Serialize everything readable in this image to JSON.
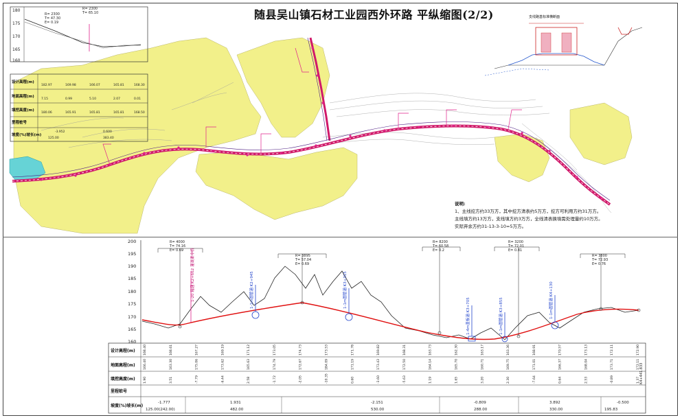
{
  "title": "随县吴山镇石材工业园西外环路 平纵缩图(2/2)",
  "section_title": "支线路基标准横断面",
  "notes": {
    "heading": "说明:",
    "lines": [
      "1、主线挖方约33万方，其中挖方清表约5万方，挖方可利用方约31万方。",
      "主线填方约13万方，支线填方约3万方，全线清表换填需处理量约10万方。",
      "实际弃余方约31-13-3-10=5万方。"
    ]
  },
  "row_labels": [
    "设计高程(m)",
    "地面高程(m)",
    "填挖高度(m)",
    "里程桩号",
    "坡度(%)坡长(m)"
  ],
  "mini_profile": {
    "y_ticks": [
      "180",
      "175",
      "170",
      "165",
      "160"
    ],
    "curve_label": [
      "R= 2300",
      "T= 47.30",
      "E= 0.19"
    ],
    "curve_label2": [
      "R= 2300",
      "T= 65.10"
    ],
    "design_elev": [
      "182.97",
      "169.98",
      "166.07",
      "165.81",
      "168.30"
    ],
    "ground_elev": [
      "7.15",
      "0.99",
      "5.10",
      "2.07",
      "0.01"
    ],
    "cut_fill": [
      "180.06",
      "165.91",
      "165.81",
      "165.81",
      "168.50"
    ],
    "slope": [
      "-3.952",
      "0.600"
    ],
    "length": [
      "125.00",
      "383.40"
    ]
  },
  "profile": {
    "y_ticks": [
      "200",
      "195",
      "190",
      "185",
      "180",
      "175",
      "170",
      "165",
      "160"
    ],
    "curves": [
      {
        "r": "R= 4000",
        "t": "T= 74.16",
        "e": "E= 0.69"
      },
      {
        "r": "R= 3895",
        "t": "T= 57.04",
        "e": "E= 0.69"
      },
      {
        "r": "R= 8200",
        "t": "T= 60.58",
        "e": "E= 0.2"
      },
      {
        "r": "R= 3200",
        "t": "T= 72.01",
        "e": "E= 0.81"
      },
      {
        "r": "R= 3800",
        "t": "T= 72.93",
        "e": "E= 0.76"
      }
    ],
    "structures": [
      "1-20 箱涵 K2+662 灌溉渠中桥",
      "1-1m圆管涵 K2+945",
      "1-1m圆管涵 K3+315",
      "1-4m盖板涵 K3+705",
      "1-1m圆管涵 K3+855",
      "1-1m圆管涵 K4+130"
    ],
    "design_elev": [
      "168.40",
      "168.61",
      "167.27",
      "169.19",
      "171.12",
      "173.05",
      "174.73",
      "173.53",
      "171.78",
      "169.82",
      "168.31",
      "163.73",
      "162.30",
      "163.17",
      "163.36",
      "168.91",
      "170.57",
      "173.13",
      "172.11",
      "172.90"
    ],
    "ground_elev": [
      "166.40",
      "163.30",
      "175.06",
      "173.62",
      "165.63",
      "174.79",
      "172.67",
      "184.09",
      "171.19",
      "173.43",
      "172.50",
      "164.14",
      "165.70",
      "160.71",
      "169.75",
      "171.01",
      "166.37",
      "168.04",
      "173.71",
      "172.11"
    ],
    "cut_fill": [
      "1.90",
      "3.51",
      "-7.79",
      "-6.44",
      "2.58",
      "-1.72",
      "-2.05",
      "-10.35",
      "0.60",
      "-3.60",
      "-5.63",
      "1.19",
      "1.65",
      "3.20",
      "2.30",
      "-7.64",
      "0.64",
      "2.53",
      "-0.89",
      "1.37"
    ],
    "slopes": [
      {
        "grade": "-1.777",
        "length": "125.00(242.00)"
      },
      {
        "grade": "1.931",
        "length": "482.00"
      },
      {
        "grade": "-2.151",
        "length": "530.00"
      },
      {
        "grade": "-0.809",
        "length": "288.00"
      },
      {
        "grade": "3.892",
        "length": "330.00"
      },
      {
        "grade": "-0.500",
        "length": "195.83"
      }
    ],
    "end_station": "K4+441.833"
  },
  "colors": {
    "terrain_yellow": "#f2f08a",
    "road": "#d0196a",
    "design_line": "#e01010",
    "ground_line": "#222222",
    "water": "#66d3d6"
  }
}
